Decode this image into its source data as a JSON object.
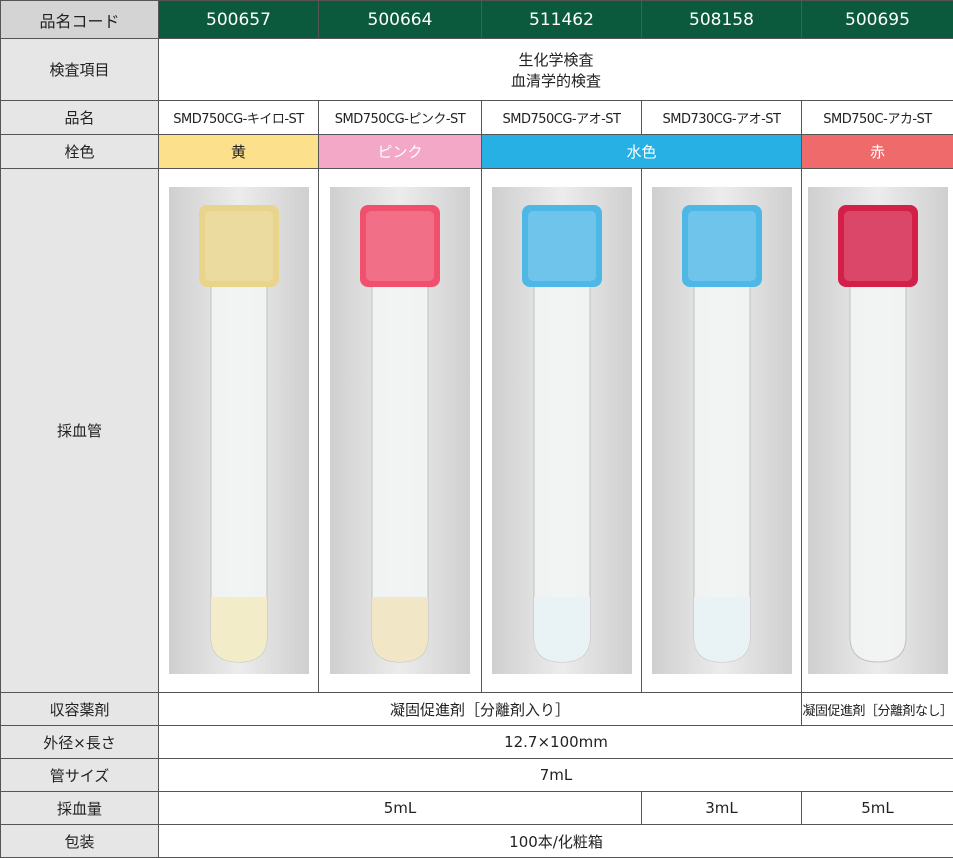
{
  "header": {
    "label": "品名コード",
    "codes": [
      "500657",
      "500664",
      "511462",
      "508158",
      "500695"
    ]
  },
  "rows": [
    {
      "label": "検査項目",
      "cells": [
        "生化学検査",
        "血清学的検査"
      ]
    },
    {
      "label": "品名",
      "cells": [
        "SMD750CG-キイロ-ST",
        "SMD750CG-ピンク-ST",
        "SMD750CG-アオ-ST",
        "SMD730CG-アオ-ST",
        "SMD750C-アカ-ST"
      ]
    },
    {
      "label": "栓色",
      "cells": [
        "黄",
        "ピンク",
        "水色",
        "赤"
      ]
    },
    {
      "label": "採血管",
      "cells": []
    },
    {
      "label": "収容薬剤",
      "cells": [
        "凝固促進剤［分離剤入り］",
        "凝固促進剤［分離剤なし］"
      ]
    },
    {
      "label": "外径×長さ",
      "cells": [
        "12.7×100mm"
      ]
    },
    {
      "label": "管サイズ",
      "cells": [
        "7mL"
      ]
    },
    {
      "label": "採血量",
      "cells": [
        "5mL",
        "3mL",
        "5mL"
      ]
    },
    {
      "label": "包装",
      "cells": [
        "100本/化粧箱"
      ]
    }
  ]
}
